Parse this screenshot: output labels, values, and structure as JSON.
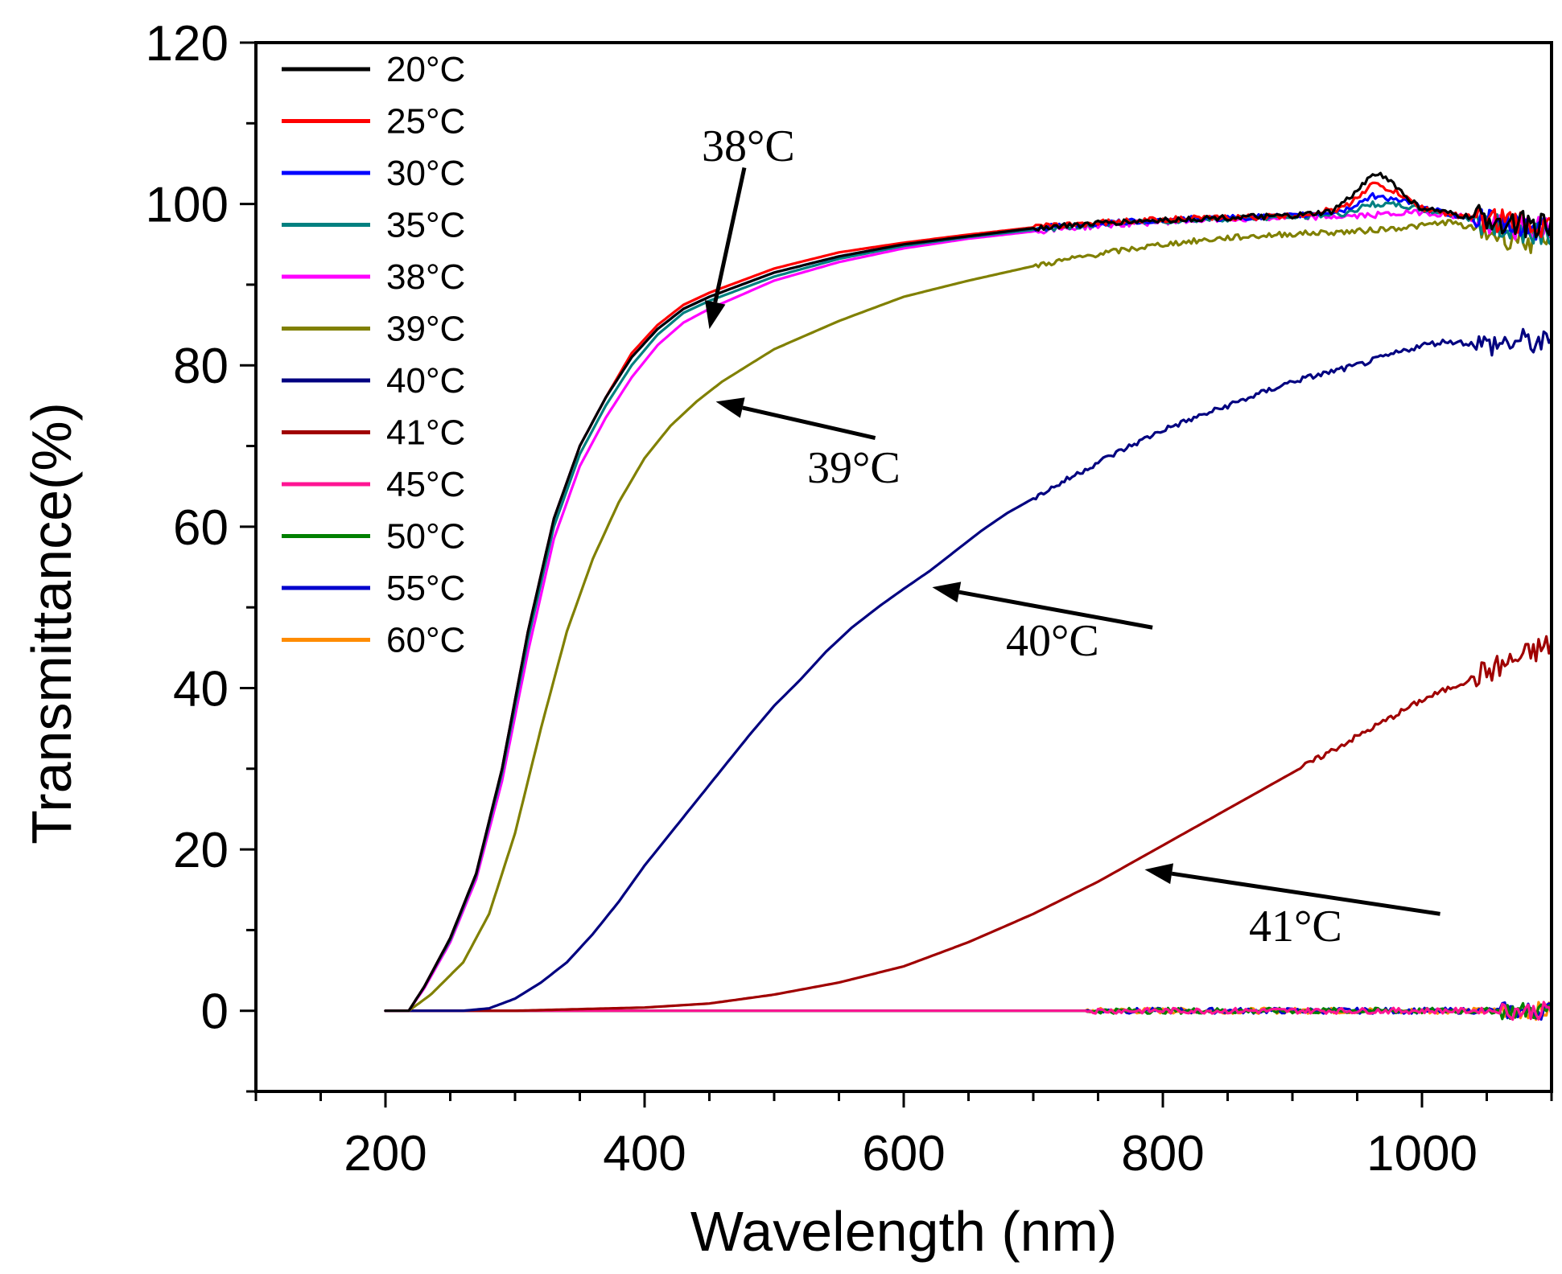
{
  "chart_data": {
    "type": "line",
    "title": "",
    "xlabel": "Wavelength (nm)",
    "ylabel": "Transmittance(%)",
    "xlim": [
      100,
      1100
    ],
    "ylim": [
      -10,
      120
    ],
    "xticks": [
      200,
      400,
      600,
      800,
      1000
    ],
    "yticks": [
      0,
      20,
      40,
      60,
      80,
      100,
      120
    ],
    "legend_position": "top-left",
    "series": [
      {
        "name": "20°C",
        "color": "#000000",
        "points": [
          [
            200,
            0
          ],
          [
            218,
            0
          ],
          [
            230,
            3
          ],
          [
            250,
            9
          ],
          [
            270,
            17
          ],
          [
            290,
            30
          ],
          [
            310,
            47
          ],
          [
            330,
            61
          ],
          [
            350,
            70
          ],
          [
            370,
            76
          ],
          [
            390,
            81
          ],
          [
            410,
            84.5
          ],
          [
            430,
            87
          ],
          [
            450,
            88.5
          ],
          [
            500,
            91.5
          ],
          [
            550,
            93.5
          ],
          [
            600,
            95
          ],
          [
            650,
            96
          ],
          [
            700,
            97
          ],
          [
            750,
            97.6
          ],
          [
            800,
            98
          ],
          [
            850,
            98.3
          ],
          [
            900,
            98.5
          ],
          [
            930,
            99
          ],
          [
            950,
            101.5
          ],
          [
            962,
            104
          ],
          [
            975,
            103
          ],
          [
            990,
            100.5
          ],
          [
            1000,
            99.5
          ],
          [
            1030,
            98.5
          ],
          [
            1060,
            98
          ],
          [
            1100,
            97
          ]
        ]
      },
      {
        "name": "25°C",
        "color": "#ff0000",
        "points": [
          [
            200,
            0
          ],
          [
            218,
            0
          ],
          [
            230,
            3
          ],
          [
            250,
            9
          ],
          [
            270,
            17
          ],
          [
            290,
            30
          ],
          [
            310,
            47
          ],
          [
            330,
            61
          ],
          [
            350,
            70
          ],
          [
            370,
            76
          ],
          [
            390,
            81.5
          ],
          [
            410,
            85
          ],
          [
            430,
            87.5
          ],
          [
            450,
            89
          ],
          [
            500,
            92
          ],
          [
            550,
            94
          ],
          [
            600,
            95.2
          ],
          [
            650,
            96.2
          ],
          [
            700,
            97.1
          ],
          [
            750,
            97.7
          ],
          [
            800,
            98.1
          ],
          [
            850,
            98.3
          ],
          [
            900,
            98.5
          ],
          [
            940,
            99.5
          ],
          [
            962,
            102.5
          ],
          [
            980,
            101.5
          ],
          [
            1000,
            99.5
          ],
          [
            1030,
            98.5
          ],
          [
            1060,
            98
          ],
          [
            1100,
            97
          ]
        ]
      },
      {
        "name": "30°C",
        "color": "#0000ff",
        "points": [
          [
            200,
            0
          ],
          [
            218,
            0
          ],
          [
            230,
            3
          ],
          [
            250,
            9
          ],
          [
            270,
            17
          ],
          [
            290,
            30
          ],
          [
            310,
            47
          ],
          [
            330,
            61
          ],
          [
            350,
            70
          ],
          [
            370,
            76
          ],
          [
            390,
            81
          ],
          [
            410,
            84.5
          ],
          [
            430,
            87
          ],
          [
            450,
            88.5
          ],
          [
            500,
            91.5
          ],
          [
            550,
            93.5
          ],
          [
            600,
            95
          ],
          [
            650,
            96
          ],
          [
            700,
            97
          ],
          [
            750,
            97.6
          ],
          [
            800,
            98
          ],
          [
            850,
            98.3
          ],
          [
            900,
            98.5
          ],
          [
            940,
            99.2
          ],
          [
            962,
            101
          ],
          [
            985,
            100.5
          ],
          [
            1000,
            99.5
          ],
          [
            1030,
            98.5
          ],
          [
            1060,
            97.5
          ],
          [
            1100,
            97
          ]
        ]
      },
      {
        "name": "35°C",
        "color": "#008080",
        "points": [
          [
            200,
            0
          ],
          [
            218,
            0
          ],
          [
            230,
            3
          ],
          [
            250,
            8.8
          ],
          [
            270,
            16.8
          ],
          [
            290,
            29.5
          ],
          [
            310,
            46
          ],
          [
            330,
            60
          ],
          [
            350,
            69
          ],
          [
            370,
            75
          ],
          [
            390,
            80
          ],
          [
            410,
            83.8
          ],
          [
            430,
            86.5
          ],
          [
            450,
            88
          ],
          [
            500,
            91
          ],
          [
            550,
            93.2
          ],
          [
            600,
            94.8
          ],
          [
            650,
            95.9
          ],
          [
            700,
            96.8
          ],
          [
            750,
            97.5
          ],
          [
            800,
            97.9
          ],
          [
            850,
            98.2
          ],
          [
            900,
            98.4
          ],
          [
            940,
            98.8
          ],
          [
            962,
            100
          ],
          [
            985,
            99.8
          ],
          [
            1000,
            99.3
          ],
          [
            1030,
            98.5
          ],
          [
            1060,
            97
          ],
          [
            1100,
            96.5
          ]
        ]
      },
      {
        "name": "38°C",
        "color": "#ff00ff",
        "points": [
          [
            200,
            0
          ],
          [
            218,
            0
          ],
          [
            230,
            2.8
          ],
          [
            250,
            8.5
          ],
          [
            270,
            16.3
          ],
          [
            290,
            28.5
          ],
          [
            310,
            44.5
          ],
          [
            330,
            58.5
          ],
          [
            350,
            67.5
          ],
          [
            370,
            73.5
          ],
          [
            390,
            78.5
          ],
          [
            410,
            82.5
          ],
          [
            430,
            85.3
          ],
          [
            450,
            87
          ],
          [
            500,
            90.5
          ],
          [
            550,
            92.8
          ],
          [
            600,
            94.5
          ],
          [
            650,
            95.7
          ],
          [
            700,
            96.6
          ],
          [
            750,
            97.3
          ],
          [
            800,
            97.8
          ],
          [
            850,
            98.1
          ],
          [
            900,
            98.3
          ],
          [
            950,
            98.5
          ],
          [
            1000,
            99
          ],
          [
            1030,
            98.5
          ],
          [
            1060,
            97
          ],
          [
            1100,
            97
          ]
        ]
      },
      {
        "name": "39°C",
        "color": "#808000",
        "points": [
          [
            200,
            0
          ],
          [
            218,
            0
          ],
          [
            235,
            2
          ],
          [
            260,
            6
          ],
          [
            280,
            12
          ],
          [
            300,
            22
          ],
          [
            320,
            35
          ],
          [
            340,
            47
          ],
          [
            360,
            56
          ],
          [
            380,
            63
          ],
          [
            400,
            68.5
          ],
          [
            420,
            72.5
          ],
          [
            440,
            75.5
          ],
          [
            460,
            78
          ],
          [
            500,
            82
          ],
          [
            550,
            85.5
          ],
          [
            600,
            88.5
          ],
          [
            650,
            90.5
          ],
          [
            700,
            92.3
          ],
          [
            750,
            93.8
          ],
          [
            800,
            95
          ],
          [
            850,
            95.8
          ],
          [
            900,
            96.3
          ],
          [
            950,
            96.6
          ],
          [
            1000,
            97.3
          ],
          [
            1020,
            97.8
          ],
          [
            1050,
            96.5
          ],
          [
            1080,
            95.5
          ],
          [
            1100,
            95
          ]
        ]
      },
      {
        "name": "40°C",
        "color": "#000080",
        "points": [
          [
            200,
            0
          ],
          [
            260,
            0
          ],
          [
            280,
            0.3
          ],
          [
            300,
            1.5
          ],
          [
            320,
            3.5
          ],
          [
            340,
            6
          ],
          [
            360,
            9.5
          ],
          [
            380,
            13.5
          ],
          [
            400,
            18
          ],
          [
            420,
            22
          ],
          [
            440,
            26
          ],
          [
            460,
            30
          ],
          [
            480,
            34
          ],
          [
            500,
            37.8
          ],
          [
            520,
            41
          ],
          [
            540,
            44.5
          ],
          [
            560,
            47.5
          ],
          [
            580,
            50
          ],
          [
            600,
            52.3
          ],
          [
            620,
            54.5
          ],
          [
            640,
            57
          ],
          [
            660,
            59.5
          ],
          [
            680,
            61.7
          ],
          [
            700,
            63.5
          ],
          [
            750,
            68
          ],
          [
            800,
            72
          ],
          [
            850,
            75
          ],
          [
            900,
            78
          ],
          [
            950,
            80
          ],
          [
            1000,
            82.5
          ],
          [
            1020,
            83
          ],
          [
            1050,
            82.5
          ],
          [
            1080,
            83
          ],
          [
            1100,
            82.5
          ]
        ]
      },
      {
        "name": "41°C",
        "color": "#a00000",
        "points": [
          [
            200,
            0
          ],
          [
            300,
            0
          ],
          [
            400,
            0.4
          ],
          [
            450,
            0.9
          ],
          [
            500,
            2
          ],
          [
            550,
            3.5
          ],
          [
            600,
            5.5
          ],
          [
            650,
            8.5
          ],
          [
            700,
            12
          ],
          [
            750,
            16
          ],
          [
            800,
            20.5
          ],
          [
            850,
            25
          ],
          [
            900,
            29.5
          ],
          [
            950,
            34
          ],
          [
            1000,
            38.5
          ],
          [
            1050,
            42
          ],
          [
            1080,
            44
          ],
          [
            1100,
            45.5
          ]
        ]
      },
      {
        "name": "45°C",
        "color": "#ff1493",
        "points": [
          [
            200,
            0
          ],
          [
            1100,
            0
          ]
        ]
      },
      {
        "name": "50°C",
        "color": "#008000",
        "points": [
          [
            200,
            0
          ],
          [
            1100,
            0
          ]
        ]
      },
      {
        "name": "55°C",
        "color": "#0000cd",
        "points": [
          [
            200,
            0
          ],
          [
            1100,
            0
          ]
        ]
      },
      {
        "name": "60°C",
        "color": "#ff8c00",
        "points": [
          [
            200,
            0
          ],
          [
            1100,
            0
          ]
        ]
      }
    ],
    "annotations": [
      {
        "text": "38°C",
        "arrow_from": [
          477,
          104.5
        ],
        "arrow_to": [
          450,
          84.5
        ]
      },
      {
        "text": "39°C",
        "arrow_from": [
          578,
          71
        ],
        "arrow_to": [
          455,
          75.5
        ]
      },
      {
        "text": "40°C",
        "arrow_from": [
          792,
          47.5
        ],
        "arrow_to": [
          622,
          52.5
        ]
      },
      {
        "text": "41°C",
        "arrow_from": [
          1014,
          12
        ],
        "arrow_to": [
          786,
          17.5
        ]
      }
    ]
  }
}
